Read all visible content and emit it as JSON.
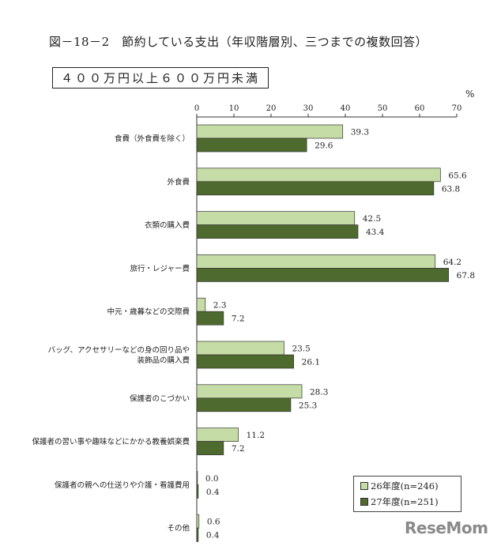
{
  "header": {
    "title": "図－18－2　節約している支出（年収階層別、三つまでの複数回答）",
    "subtitle": "４００万円以上６００万円未満"
  },
  "watermark": "ReseMom",
  "chart_data": {
    "type": "bar",
    "orientation": "horizontal",
    "unit": "%",
    "xlim": [
      0,
      70
    ],
    "ticks": [
      0,
      10,
      20,
      30,
      40,
      50,
      60,
      70
    ],
    "categories": [
      [
        "食費（外食費を除く）"
      ],
      [
        "外食費"
      ],
      [
        "衣類の購入費"
      ],
      [
        "旅行・レジャー費"
      ],
      [
        "中元・歳暮などの交際費"
      ],
      [
        "バッグ、アクセサリーなどの身の回り品や",
        "装飾品の購入費"
      ],
      [
        "保護者のこづかい"
      ],
      [
        "保護者の習い事や趣味などにかかる教養娯楽費"
      ],
      [
        "保護者の親への仕送りや介護・看護費用"
      ],
      [
        "その他"
      ]
    ],
    "series": [
      {
        "name": "26年度(n=246)",
        "color": "#c6dca6",
        "values": [
          39.3,
          65.6,
          42.5,
          64.2,
          2.3,
          23.5,
          28.3,
          11.2,
          0.0,
          0.6
        ]
      },
      {
        "name": "27年度(n=251)",
        "color": "#4e6a2e",
        "values": [
          29.6,
          63.8,
          43.4,
          67.8,
          7.2,
          26.1,
          25.3,
          7.2,
          0.4,
          0.4
        ]
      }
    ],
    "legend_position": "bottom-right",
    "grid": false
  }
}
